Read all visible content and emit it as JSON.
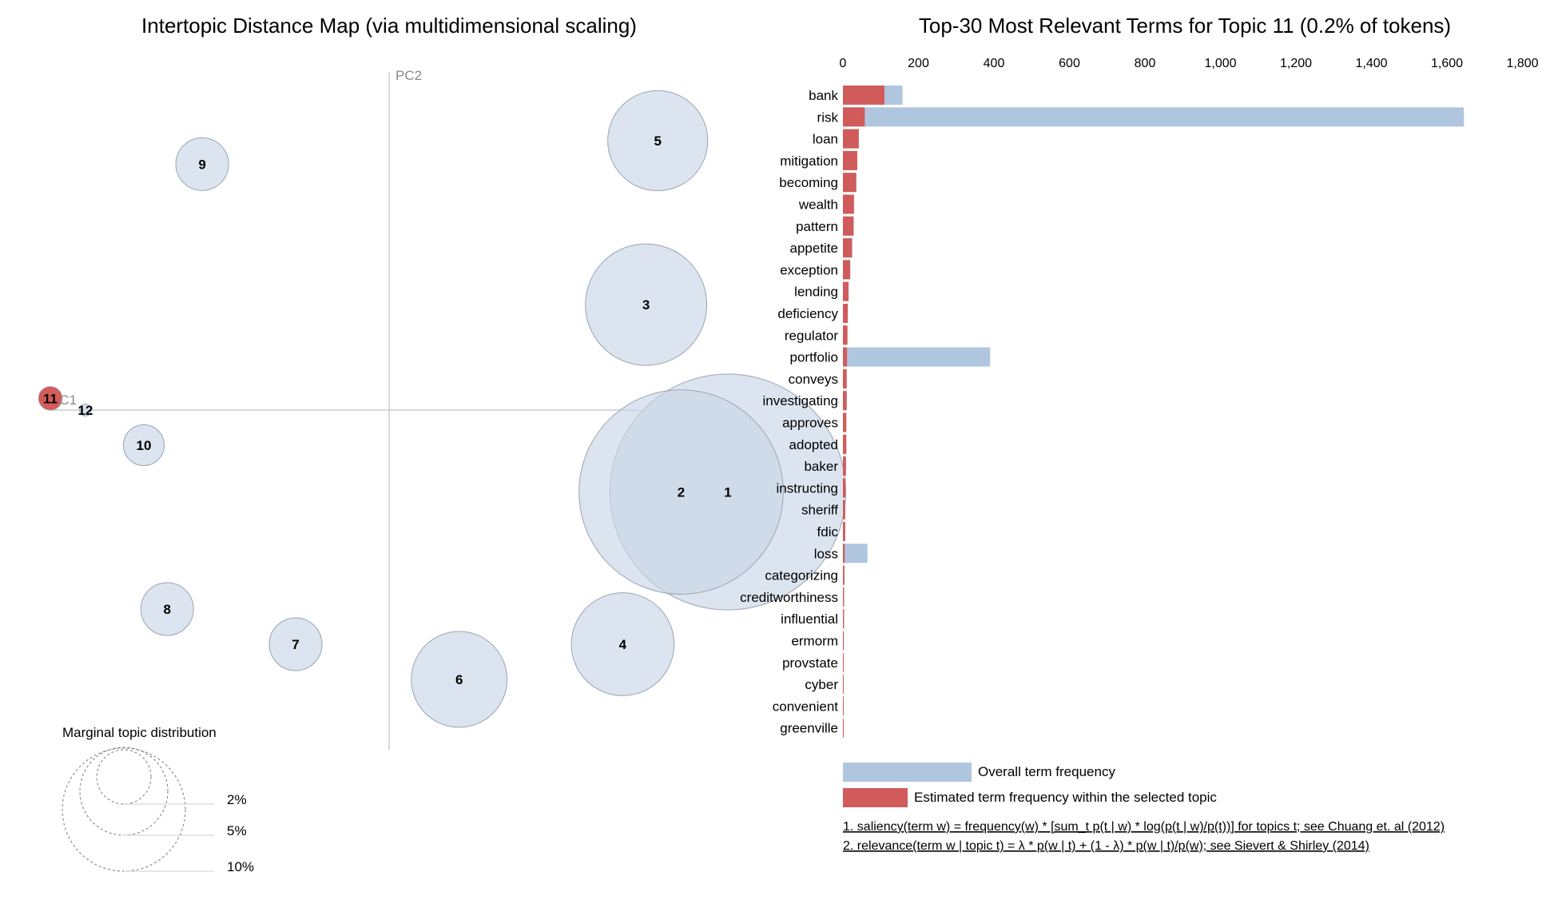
{
  "left_panel": {
    "title": "Intertopic Distance Map (via multidimensional scaling)",
    "axis_x_label": "PC1",
    "axis_y_label": "PC2",
    "marginal": {
      "title": "Marginal topic distribution",
      "labels": [
        "2%",
        "5%",
        "10%"
      ]
    }
  },
  "right_panel": {
    "title": "Top-30 Most Relevant Terms for Topic 11 (0.2% of tokens)",
    "legend": {
      "overall": "Overall term frequency",
      "estimated": "Estimated term frequency within the selected topic"
    },
    "notes": [
      "1. saliency(term w) = frequency(w) * [sum_t p(t | w) * log(p(t | w)/p(t))] for topics t; see Chuang et. al (2012)",
      "2. relevance(term w | topic t) = λ * p(w | t) + (1 - λ) * p(w | t)/p(w); see Sievert & Shirley (2014)"
    ]
  },
  "colors": {
    "topic_fill": "#c9d6e6",
    "topic_stroke": "#9aa4b0",
    "selected_topic": "#d65a5a",
    "overall_bar": "#b0c6df",
    "estimated_bar": "#d15b5b",
    "axis": "#cccccc"
  },
  "chart_data": [
    {
      "type": "scatter",
      "title": "Intertopic Distance Map (via multidimensional scaling)",
      "xlabel": "PC1",
      "ylabel": "PC2",
      "note": "Topic bubbles; x/y are approximate MDS coordinates, size = marginal topic distribution",
      "selected_topic": "11",
      "topics": [
        {
          "id": "1",
          "x": 0.29,
          "y": -0.07,
          "size_pct": 20.0
        },
        {
          "id": "2",
          "x": 0.25,
          "y": -0.07,
          "size_pct": 15.0
        },
        {
          "id": "3",
          "x": 0.22,
          "y": 0.09,
          "size_pct": 5.3
        },
        {
          "id": "4",
          "x": 0.2,
          "y": -0.2,
          "size_pct": 3.8
        },
        {
          "id": "5",
          "x": 0.23,
          "y": 0.23,
          "size_pct": 3.6
        },
        {
          "id": "6",
          "x": 0.06,
          "y": -0.23,
          "size_pct": 3.3
        },
        {
          "id": "7",
          "x": -0.08,
          "y": -0.2,
          "size_pct": 1.0
        },
        {
          "id": "8",
          "x": -0.19,
          "y": -0.17,
          "size_pct": 1.0
        },
        {
          "id": "9",
          "x": -0.16,
          "y": 0.21,
          "size_pct": 1.0
        },
        {
          "id": "10",
          "x": -0.21,
          "y": -0.03,
          "size_pct": 0.6
        },
        {
          "id": "11",
          "x": -0.29,
          "y": 0.01,
          "size_pct": 0.2
        },
        {
          "id": "12",
          "x": -0.26,
          "y": 0.0,
          "size_pct": 0.05
        }
      ]
    },
    {
      "type": "bar",
      "title": "Top-30 Most Relevant Terms for Topic 11 (0.2% of tokens)",
      "orientation": "horizontal",
      "xlim": [
        0,
        1800
      ],
      "xticks": [
        "0",
        "200",
        "400",
        "600",
        "800",
        "1,000",
        "1,200",
        "1,400",
        "1,600",
        "1,800"
      ],
      "categories": [
        "bank",
        "risk",
        "loan",
        "mitigation",
        "becoming",
        "wealth",
        "pattern",
        "appetite",
        "exception",
        "lending",
        "deficiency",
        "regulator",
        "portfolio",
        "conveys",
        "investigating",
        "approves",
        "adopted",
        "baker",
        "instructing",
        "sheriff",
        "fdic",
        "loss",
        "categorizing",
        "creditworthiness",
        "influential",
        "ermorm",
        "provstate",
        "cyber",
        "convenient",
        "greenville"
      ],
      "series": [
        {
          "name": "Overall term frequency",
          "values": [
            158,
            1645,
            42,
            38,
            36,
            30,
            29,
            25,
            20,
            15,
            13,
            12,
            390,
            10,
            10,
            9,
            9,
            8,
            7,
            6,
            6,
            65,
            4,
            3,
            3,
            3,
            2,
            2,
            2,
            2
          ]
        },
        {
          "name": "Estimated term frequency within the selected topic",
          "values": [
            110,
            58,
            42,
            38,
            35,
            29,
            28,
            24,
            19,
            15,
            13,
            12,
            11,
            10,
            10,
            9,
            9,
            8,
            7,
            6,
            6,
            5,
            4,
            3,
            3,
            2,
            2,
            1,
            1,
            1
          ]
        }
      ]
    }
  ]
}
